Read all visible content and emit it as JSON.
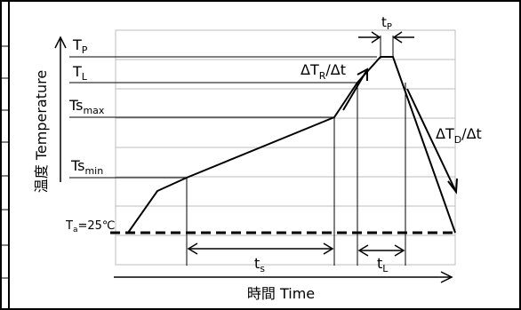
{
  "labels": {
    "tp": "T",
    "tp_sub": "P",
    "tl": "T",
    "tl_sub": "L",
    "tsmax": "Ts",
    "tsmax_sub": "max",
    "tsmin": "Ts",
    "tsmin_sub": "min",
    "ta": "T",
    "ta_sub": "a",
    "ta_value": "=25℃",
    "ramp_up": "ΔT",
    "ramp_up_sub": "R",
    "ramp_up_tail": "/Δt",
    "ramp_down": "ΔT",
    "ramp_down_sub": "D",
    "ramp_down_tail": "/Δt",
    "tp_width": "t",
    "tp_width_sub": "P",
    "ts_width": "t",
    "ts_width_sub": "s",
    "tl_width": "t",
    "tl_width_sub": "L"
  },
  "axes": {
    "x_label": "時間  Time",
    "y_label": "温度  Temperature"
  },
  "colors": {
    "grid": "#bdbdbd",
    "line": "#000000",
    "frame": "#000000"
  }
}
